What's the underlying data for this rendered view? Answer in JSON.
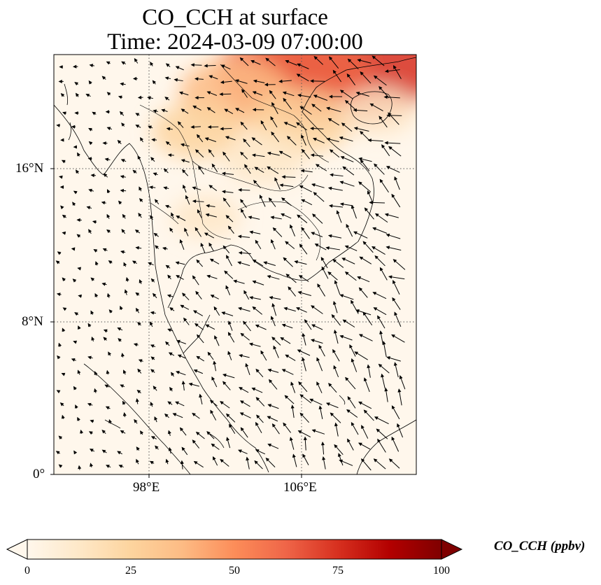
{
  "title": {
    "line1": "CO_CCH at surface",
    "line2": "Time: 2024-03-09 07:00:00"
  },
  "axes": {
    "lat_ticks": [
      "16°N",
      "8°N",
      "0°"
    ],
    "lon_ticks": [
      "98°E",
      "106°E"
    ]
  },
  "colorbar": {
    "label": "CO_CCH (ppbv)",
    "ticks": [
      "0",
      "25",
      "50",
      "75",
      "100"
    ],
    "range": [
      0,
      100
    ],
    "colormap": "OrRd",
    "colors": [
      "#fff7ec",
      "#fee8c8",
      "#fdd49e",
      "#fdbb84",
      "#fc8d59",
      "#ef6548",
      "#d7301f",
      "#b30000",
      "#7f0000"
    ]
  },
  "map_data": {
    "field": "CO_CCH",
    "units": "ppbv",
    "level": "surface",
    "extent": {
      "lon": [
        93,
        112
      ],
      "lat": [
        0,
        22
      ]
    },
    "gridlines": {
      "lon": [
        98,
        106
      ],
      "lat": [
        8,
        16
      ]
    },
    "hotspots": [
      {
        "lon": 108.5,
        "lat": 21.5,
        "value": 80
      },
      {
        "lon": 105.5,
        "lat": 21.0,
        "value": 60
      },
      {
        "lon": 102.5,
        "lat": 20.0,
        "value": 35
      },
      {
        "lon": 100.5,
        "lat": 18.0,
        "value": 22
      },
      {
        "lon": 106.0,
        "lat": 18.5,
        "value": 30
      },
      {
        "lon": 104.0,
        "lat": 16.5,
        "value": 18
      },
      {
        "lon": 110.0,
        "lat": 19.0,
        "value": 14
      },
      {
        "lon": 101.0,
        "lat": 13.5,
        "value": 10
      }
    ],
    "wind_vectors": "quiver field, black arrows"
  }
}
